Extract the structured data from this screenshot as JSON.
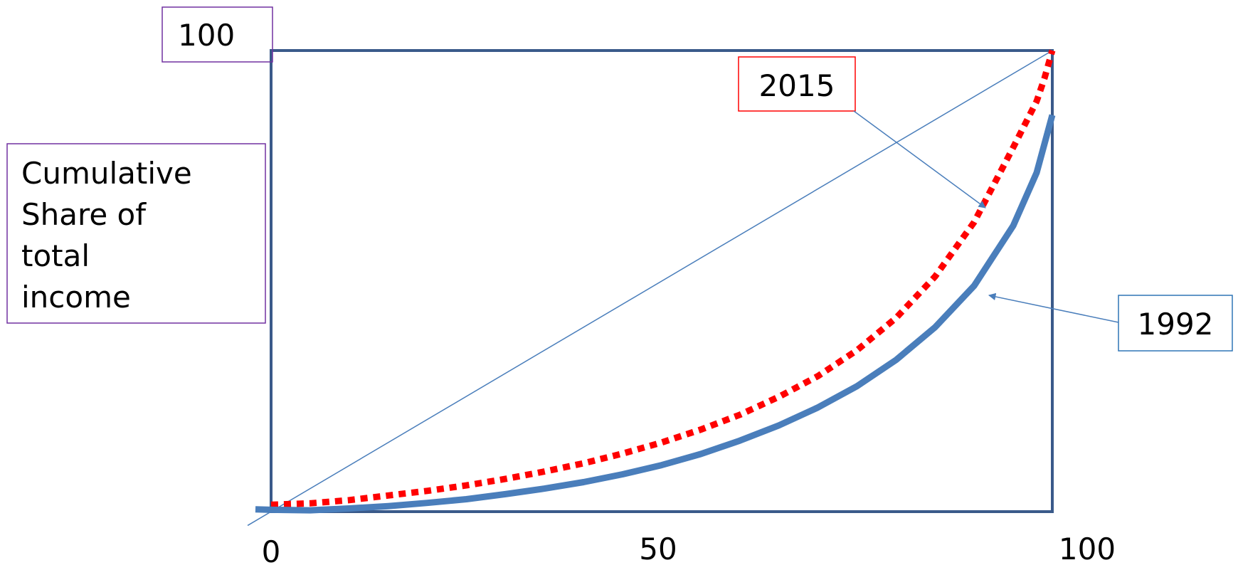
{
  "chart_data": {
    "type": "line",
    "title": "",
    "xlabel": "",
    "ylabel": "Cumulative Share of total income",
    "ylabel_lines": [
      "Cumulative",
      "Share of",
      "total",
      "income"
    ],
    "xlim": [
      0,
      100
    ],
    "ylim": [
      0,
      100
    ],
    "x_tick_labels": [
      "0",
      "50",
      "100"
    ],
    "y_tick_label": "100",
    "grid": false,
    "equality_line": {
      "x": [
        0,
        100
      ],
      "y": [
        0,
        100
      ],
      "color": "#4a7ebb"
    },
    "series": [
      {
        "name": "2015",
        "style": "dotted",
        "color": "#ff0000",
        "x": [
          0,
          5,
          10,
          15,
          20,
          25,
          30,
          35,
          40,
          45,
          50,
          55,
          60,
          65,
          70,
          75,
          80,
          85,
          90,
          95,
          98,
          99,
          100
        ],
        "y": [
          1.5,
          1.8,
          2.5,
          3.5,
          4.5,
          5.7,
          7.1,
          8.7,
          10.5,
          12.6,
          15.0,
          17.8,
          21.0,
          24.9,
          29.4,
          35.0,
          42.0,
          51.0,
          62.8,
          79.0,
          89.0,
          94.0,
          100
        ]
      },
      {
        "name": "1992",
        "style": "solid",
        "color": "#4a7ebb",
        "x": [
          -2,
          0,
          5,
          10,
          15,
          20,
          25,
          30,
          35,
          40,
          45,
          50,
          55,
          60,
          65,
          70,
          75,
          80,
          85,
          90,
          95,
          98,
          100
        ],
        "y": [
          0.5,
          0.4,
          0.3,
          0.7,
          1.2,
          1.9,
          2.7,
          3.8,
          5.0,
          6.4,
          8.1,
          10.1,
          12.5,
          15.4,
          18.7,
          22.6,
          27.2,
          32.9,
          40.0,
          49.0,
          62.0,
          73.5,
          86.0
        ]
      }
    ]
  }
}
